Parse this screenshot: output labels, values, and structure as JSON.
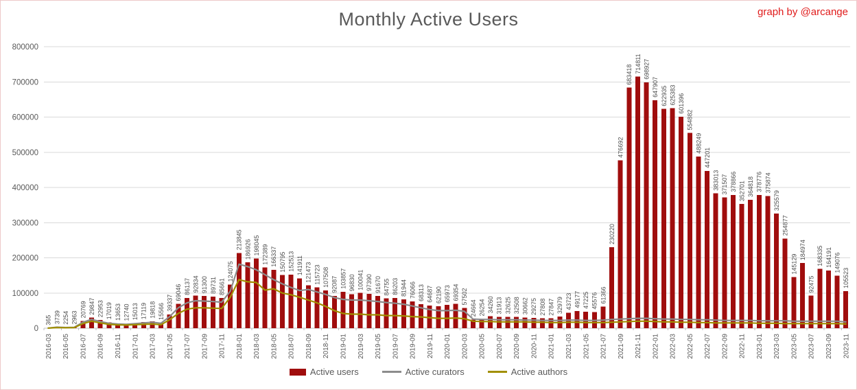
{
  "page": {
    "credit": "graph by @arcange"
  },
  "chart_data": {
    "type": "bar",
    "title": "Monthly Active Users",
    "xlabel": "",
    "ylabel": "",
    "ylim": [
      0,
      800000
    ],
    "y_ticks": [
      0,
      100000,
      200000,
      300000,
      400000,
      500000,
      600000,
      700000,
      800000
    ],
    "grid": true,
    "legend_position": "bottom",
    "x_tick_every": 2,
    "colors": {
      "bar": "#a00d0d",
      "grid": "#d9d9d9",
      "axis": "#bfbfbf",
      "bar_label": "#4d4d4d",
      "tick_label": "#595959"
    },
    "categories": [
      "2016-03",
      "2016-04",
      "2016-05",
      "2016-06",
      "2016-07",
      "2016-08",
      "2016-09",
      "2016-10",
      "2016-11",
      "2016-12",
      "2017-01",
      "2017-02",
      "2017-03",
      "2017-04",
      "2017-05",
      "2017-06",
      "2017-07",
      "2017-08",
      "2017-09",
      "2017-10",
      "2017-11",
      "2017-12",
      "2018-01",
      "2018-02",
      "2018-03",
      "2018-04",
      "2018-05",
      "2018-06",
      "2018-07",
      "2018-08",
      "2018-09",
      "2018-10",
      "2018-11",
      "2018-12",
      "2019-01",
      "2019-02",
      "2019-03",
      "2019-04",
      "2019-05",
      "2019-06",
      "2019-07",
      "2019-08",
      "2019-09",
      "2019-10",
      "2019-11",
      "2019-12",
      "2020-01",
      "2020-02",
      "2020-03",
      "2020-04",
      "2020-05",
      "2020-06",
      "2020-07",
      "2020-08",
      "2020-09",
      "2020-10",
      "2020-11",
      "2020-12",
      "2021-01",
      "2021-02",
      "2021-03",
      "2021-04",
      "2021-05",
      "2021-06",
      "2021-07",
      "2021-08",
      "2021-09",
      "2021-10",
      "2021-11",
      "2021-12",
      "2022-01",
      "2022-02",
      "2022-03",
      "2022-04",
      "2022-05",
      "2022-06",
      "2022-07",
      "2022-08",
      "2022-09",
      "2022-10",
      "2022-11",
      "2022-12",
      "2023-01",
      "2023-02",
      "2023-03",
      "2023-04",
      "2023-05",
      "2023-06",
      "2023-07",
      "2023-08",
      "2023-09",
      "2023-10",
      "2023-11"
    ],
    "series": [
      {
        "name": "Active users",
        "type": "bar",
        "color": "#a00d0d",
        "data_labels": true,
        "values": [
          365,
          3739,
          2254,
          2963,
          20769,
          29847,
          22953,
          17019,
          13653,
          12740,
          15013,
          17119,
          19818,
          15566,
          39337,
          69046,
          86137,
          92834,
          91300,
          89731,
          85661,
          124075,
          213845,
          186926,
          198045,
          172389,
          166337,
          150795,
          152513,
          141911,
          121473,
          115723,
          107508,
          92087,
          103857,
          96830,
          100041,
          97390,
          91670,
          84755,
          86203,
          81944,
          76066,
          68313,
          64687,
          62190,
          65973,
          69354,
          57502,
          24664,
          26254,
          34260,
          31913,
          32625,
          32508,
          30662,
          29275,
          27808,
          27847,
          32979,
          43723,
          49177,
          47225,
          45576,
          61366,
          230220,
          476692,
          683418,
          714811,
          698927,
          647907,
          622935,
          625383,
          601396,
          554882,
          488249,
          447201,
          383013,
          371507,
          378866,
          352701,
          364818,
          378776,
          375874,
          325579,
          254877,
          145129,
          184974,
          92475,
          168335,
          164191,
          149076,
          105523
        ]
      },
      {
        "name": "Active curators",
        "type": "line",
        "color": "#8c8c8c",
        "data_labels": false,
        "values_estimated": true,
        "values": [
          300,
          3000,
          2000,
          2500,
          17000,
          25000,
          19000,
          14000,
          12000,
          11000,
          13000,
          15000,
          17000,
          14000,
          33000,
          58000,
          72000,
          78000,
          77000,
          76000,
          74000,
          105000,
          182000,
          175000,
          166000,
          152000,
          138000,
          126000,
          116000,
          107000,
          110000,
          103000,
          96000,
          87000,
          82000,
          80000,
          80000,
          78000,
          76000,
          73000,
          71000,
          68000,
          63000,
          58000,
          53000,
          50000,
          50000,
          51000,
          48000,
          26000,
          25000,
          25000,
          24000,
          24000,
          24000,
          23000,
          23000,
          22000,
          22000,
          22000,
          23000,
          23000,
          22000,
          22000,
          23000,
          25000,
          26000,
          27000,
          28000,
          28000,
          27000,
          26000,
          26000,
          25000,
          25000,
          24000,
          24000,
          23000,
          22000,
          22000,
          22000,
          22000,
          21000,
          21000,
          21000,
          21000,
          20000,
          20000,
          20000,
          20000,
          20000,
          20000,
          18000
        ]
      },
      {
        "name": "Active authors",
        "type": "line",
        "color": "#a18f00",
        "data_labels": false,
        "values_estimated": true,
        "values": [
          200,
          2000,
          1400,
          1800,
          13000,
          20000,
          15000,
          11000,
          9500,
          9000,
          10000,
          11000,
          12000,
          10000,
          24000,
          42000,
          54000,
          58000,
          58000,
          57000,
          56000,
          88000,
          138000,
          132000,
          130000,
          108000,
          112000,
          100000,
          95000,
          88000,
          80000,
          72000,
          62000,
          50000,
          42000,
          40000,
          40000,
          38000,
          38000,
          36000,
          36000,
          35000,
          33000,
          32000,
          30000,
          28000,
          28000,
          29000,
          27000,
          20000,
          19000,
          19000,
          18000,
          18000,
          18000,
          18000,
          17000,
          17000,
          16000,
          16000,
          17000,
          17000,
          16000,
          16000,
          16000,
          17000,
          18000,
          19000,
          20000,
          20000,
          19000,
          18000,
          18000,
          17000,
          17000,
          16000,
          16000,
          15000,
          15000,
          15000,
          15000,
          15000,
          14000,
          14000,
          14000,
          13000,
          13000,
          13000,
          13000,
          13000,
          13000,
          13000,
          12000
        ]
      }
    ]
  }
}
